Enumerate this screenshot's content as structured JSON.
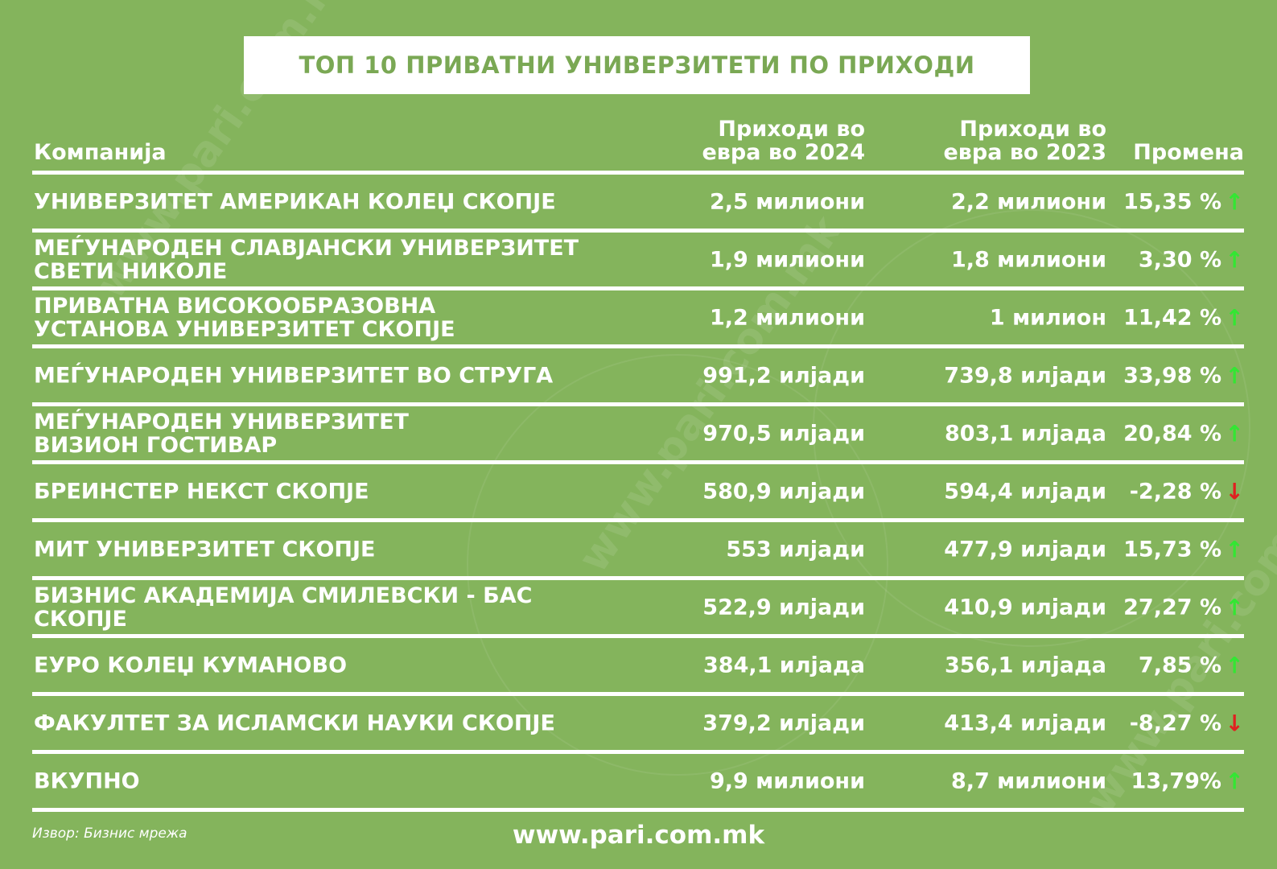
{
  "title": "ТОП 10 ПРИВАТНИ УНИВЕРЗИТЕТИ ПО ПРИХОДИ",
  "headers": {
    "company": "Компанија",
    "revenue_2024": "Приходи во\nевра во 2024",
    "revenue_2023": "Приходи во\nевра во 2023",
    "change": "Промена"
  },
  "rows": [
    {
      "name": "УНИВЕРЗИТЕТ АМЕРИКАН КОЛЕЏ СКОПЈЕ",
      "rev2024": "2,5 милиони",
      "rev2023": "2,2 милиони",
      "change": "15,35 %",
      "direction": "up"
    },
    {
      "name": "МЕЃУНАРОДЕН СЛАВЈАНСКИ УНИВЕРЗИТЕТ\nСВЕТИ НИКОЛЕ",
      "rev2024": "1,9 милиони",
      "rev2023": "1,8 милиони",
      "change": "3,30 %",
      "direction": "up"
    },
    {
      "name": "ПРИВАТНА ВИСОКООБРАЗОВНА\nУСТАНОВА УНИВЕРЗИТЕТ СКОПЈЕ",
      "rev2024": "1,2 милиони",
      "rev2023": "1 милион",
      "change": "11,42 %",
      "direction": "up"
    },
    {
      "name": "МЕЃУНАРОДЕН УНИВЕРЗИТЕТ ВО СТРУГА",
      "rev2024": "991,2 илјади",
      "rev2023": "739,8 илјади",
      "change": "33,98 %",
      "direction": "up"
    },
    {
      "name": "МЕЃУНАРОДЕН УНИВЕРЗИТЕТ\nВИЗИОН ГОСТИВАР",
      "rev2024": "970,5 илјади",
      "rev2023": "803,1 илјада",
      "change": "20,84 %",
      "direction": "up"
    },
    {
      "name": "БРЕИНСТЕР НЕКСТ СКОПЈЕ",
      "rev2024": "580,9 илјади",
      "rev2023": "594,4 илјади",
      "change": "-2,28 %",
      "direction": "down"
    },
    {
      "name": "МИТ УНИВЕРЗИТЕТ  СКОПЈЕ",
      "rev2024": "553 илјади",
      "rev2023": "477,9 илјади",
      "change": "15,73 %",
      "direction": "up"
    },
    {
      "name": "БИЗНИС АКАДЕМИЈА СМИЛЕВСКИ - БАС\nСКОПЈЕ",
      "rev2024": "522,9 илјади",
      "rev2023": "410,9 илјади",
      "change": "27,27 %",
      "direction": "up"
    },
    {
      "name": "ЕУРО КОЛЕЏ КУМАНОВО",
      "rev2024": "384,1 илјада",
      "rev2023": "356,1 илјада",
      "change": "7,85 %",
      "direction": "up"
    },
    {
      "name": "ФАКУЛТЕТ ЗА ИСЛАМСКИ НАУКИ СКОПЈЕ",
      "rev2024": "379,2 илјади",
      "rev2023": "413,4 илјади",
      "change": "-8,27 %",
      "direction": "down"
    },
    {
      "name": "ВКУПНО",
      "rev2024": "9,9 милиони",
      "rev2023": "8,7 милиони",
      "change": "13,79%",
      "direction": "up"
    }
  ],
  "arrows": {
    "up": "↑",
    "down": "↓"
  },
  "colors": {
    "background": "#84b45c",
    "title_text": "#7aa854",
    "arrow_up": "#33e633",
    "arrow_down": "#e02020"
  },
  "source": "Извор: Бизнис мрежа",
  "website": "www.pari.com.mk",
  "watermark_text": "www.pari.com.mk"
}
